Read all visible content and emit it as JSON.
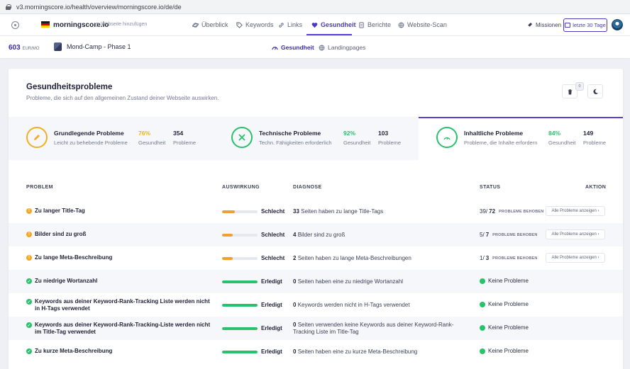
{
  "browser": {
    "url": "v3.morningscore.io/health/overview/morningscore.io/de/de"
  },
  "nav": {
    "site": "morningscore.io",
    "add_site": "Webseite hinzufügen",
    "items": [
      {
        "label": "Überblick",
        "icon": "planet-icon"
      },
      {
        "label": "Keywords",
        "icon": "tag-icon"
      },
      {
        "label": "Links",
        "icon": "link-icon"
      },
      {
        "label": "Gesundheit",
        "icon": "heart-icon",
        "active": true
      },
      {
        "label": "Berichte",
        "icon": "document-icon"
      },
      {
        "label": "Website-Scan",
        "icon": "globe-icon"
      }
    ],
    "missions": "Missionen",
    "period": "letzte 30 Tage"
  },
  "subnav": {
    "price": "603",
    "price_unit": "EUR/MO",
    "project": "Mond-Camp - Phase 1",
    "tabs": [
      {
        "label": "Gesundheit",
        "active": true
      },
      {
        "label": "Landingpages"
      }
    ]
  },
  "card": {
    "title": "Gesundheitsprobleme",
    "subtitle": "Probleme, die sich auf den allgemeinen Zustand deiner Webseite auswirken.",
    "trash_count": "0"
  },
  "categories": [
    {
      "name": "Grundlegende Probleme",
      "desc": "Leicht zu behebende Probleme",
      "pct": "76%",
      "pct_label": "Gesundheit",
      "count": "354",
      "count_label": "Probleme",
      "color": "#f2b01e"
    },
    {
      "name": "Technische Probleme",
      "desc": "Techn. Fähigkeiten erforderlich",
      "pct": "92%",
      "pct_label": "Gesundheit",
      "count": "103",
      "count_label": "Probleme",
      "color": "#27c26b"
    },
    {
      "name": "Inhaltliche Probleme",
      "desc": "Probleme, die Inhalte erfordern",
      "pct": "84%",
      "pct_label": "Gesundheit",
      "count": "149",
      "count_label": "Probleme",
      "color": "#27c26b",
      "active": true
    }
  ],
  "table": {
    "headers": {
      "problem": "PROBLEM",
      "impact": "AUSWIRKUNG",
      "diagnosis": "DIAGNOSE",
      "status": "STATUS",
      "action": "AKTION"
    },
    "rows": [
      {
        "name": "Zu langer Title-Tag",
        "level": "warn",
        "impact": "Schlecht",
        "impact_fill": 0.35,
        "diag_num": "33",
        "diag_text": "Seiten haben zu lange Title-Tags",
        "status_fixed": "39",
        "status_total": "72",
        "status_label": "PROBLEME BEHOBEN",
        "action": "Alle Probleme anzeigen"
      },
      {
        "name": "Bilder sind zu groß",
        "level": "warn",
        "impact": "Schlecht",
        "impact_fill": 0.3,
        "diag_num": "4",
        "diag_text": "Bilder sind zu groß",
        "status_fixed": "5",
        "status_total": "7",
        "status_label": "PROBLEME BEHOBEN",
        "action": "Alle Probleme anzeigen"
      },
      {
        "name": "Zu lange Meta-Beschreibung",
        "level": "warn",
        "impact": "Schlecht",
        "impact_fill": 0.3,
        "diag_num": "2",
        "diag_text": "Seiten haben zu lange Meta-Beschreibungen",
        "status_fixed": "1",
        "status_total": "3",
        "status_label": "PROBLEME BEHOBEN",
        "action": "Alle Probleme anzeigen"
      },
      {
        "name": "Zu niedrige Wortanzahl",
        "level": "ok",
        "impact": "Erledigt",
        "impact_fill": 1,
        "diag_num": "0",
        "diag_text": "Seiten haben eine zu niedrige Wortanzahl",
        "status_ok": "Keine Probleme"
      },
      {
        "name": "Keywords aus deiner Keyword-Rank-Tracking Liste werden nicht in H-Tags verwendet",
        "level": "ok",
        "impact": "Erledigt",
        "impact_fill": 1,
        "diag_num": "0",
        "diag_text": "Keywords werden nicht in H-Tags verwendet",
        "status_ok": "Keine Probleme"
      },
      {
        "name": "Keywords aus deiner Keyword-Rank-Tracking-Liste werden nicht im Title-Tag verwendet",
        "level": "ok",
        "impact": "Erledigt",
        "impact_fill": 1,
        "diag_num": "0",
        "diag_text": "Seiten verwenden keine Keywords aus deiner Keyword-Rank-Tracking Liste im Title-Tag",
        "status_ok": "Keine Probleme"
      },
      {
        "name": "Zu kurze Meta-Beschreibung",
        "level": "ok",
        "impact": "Erledigt",
        "impact_fill": 1,
        "diag_num": "0",
        "diag_text": "Seiten haben eine zu kurze Meta-Beschreibung",
        "status_ok": "Keine Probleme"
      }
    ]
  },
  "colors": {
    "accent": "#5640d8",
    "warn": "#f5a623",
    "bad_bar": "#f0a030",
    "ok": "#27c26b"
  }
}
